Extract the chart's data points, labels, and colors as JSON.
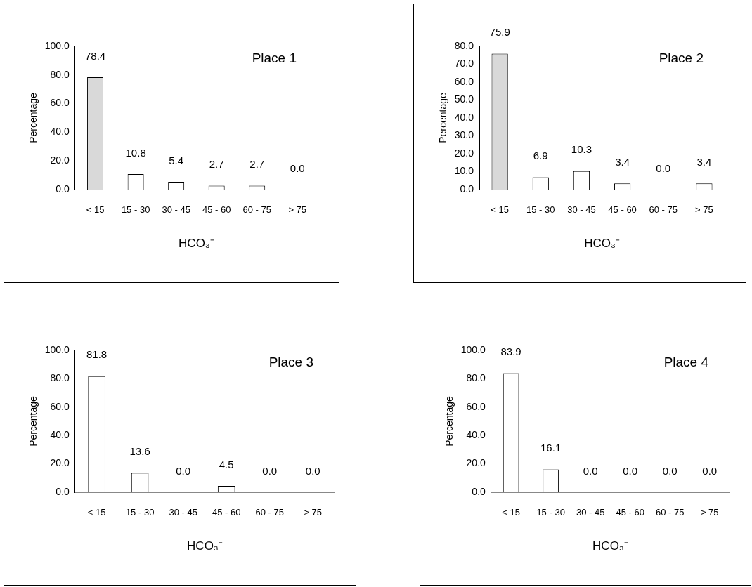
{
  "chart_data": [
    {
      "type": "bar",
      "title": "Place 1",
      "xlabel": "HCO₃⁻",
      "ylabel": "Percentage",
      "categories": [
        "< 15",
        "15 - 30",
        "30 - 45",
        "45 - 60",
        "60 - 75",
        "> 75"
      ],
      "values": [
        78.4,
        10.8,
        5.4,
        2.7,
        2.7,
        0
      ],
      "value_labels": [
        "78.4",
        "10.8",
        "5.4",
        "2.7",
        "2.7",
        "0.0"
      ],
      "colors": [
        "#d9d9d9",
        "#ffffff",
        "#ffffff",
        "#ffffff",
        "#ffffff",
        "#ffffff"
      ],
      "ylim": [
        0,
        100
      ],
      "yticks": [
        {
          "value": 0,
          "label": "0.0"
        },
        {
          "value": 20,
          "label": "20.0"
        },
        {
          "value": 40,
          "label": "40.0"
        },
        {
          "value": 60,
          "label": "60.0"
        },
        {
          "value": 80,
          "label": "80.0"
        },
        {
          "value": 100,
          "label": "100.0"
        }
      ],
      "grid": false,
      "legend": false
    },
    {
      "type": "bar",
      "title": "Place 2",
      "xlabel": "HCO₃⁻",
      "ylabel": "Percentage",
      "categories": [
        "< 15",
        "15 - 30",
        "30 - 45",
        "45 - 60",
        "60 - 75",
        "> 75"
      ],
      "values": [
        75.9,
        6.9,
        10.3,
        3.4,
        0,
        3.4
      ],
      "value_labels": [
        "75.9",
        "6.9",
        "10.3",
        "3.4",
        "0.0",
        "3.4"
      ],
      "colors": [
        "#d9d9d9",
        "#ffffff",
        "#ffffff",
        "#ffffff",
        "#ffffff",
        "#ffffff"
      ],
      "ylim": [
        0,
        80
      ],
      "yticks": [
        {
          "value": 0,
          "label": "0.0"
        },
        {
          "value": 10,
          "label": "10.0"
        },
        {
          "value": 20,
          "label": "20.0"
        },
        {
          "value": 30,
          "label": "30.0"
        },
        {
          "value": 40,
          "label": "40.0"
        },
        {
          "value": 50,
          "label": "50.0"
        },
        {
          "value": 60,
          "label": "60.0"
        },
        {
          "value": 70,
          "label": "70.0"
        },
        {
          "value": 80,
          "label": "80.0"
        }
      ],
      "grid": false,
      "legend": false
    },
    {
      "type": "bar",
      "title": "Place 3",
      "xlabel": "HCO₃⁻",
      "ylabel": "Percentage",
      "categories": [
        "< 15",
        "15 - 30",
        "30 - 45",
        "45 - 60",
        "60 - 75",
        "> 75"
      ],
      "values": [
        81.8,
        13.6,
        0,
        4.5,
        0,
        0
      ],
      "value_labels": [
        "81.8",
        "13.6",
        "0.0",
        "4.5",
        "0.0",
        "0.0"
      ],
      "colors": [
        "#ffffff",
        "#ffffff",
        "#ffffff",
        "#ffffff",
        "#ffffff",
        "#ffffff"
      ],
      "ylim": [
        0,
        100
      ],
      "yticks": [
        {
          "value": 0,
          "label": "0.0"
        },
        {
          "value": 20,
          "label": "20.0"
        },
        {
          "value": 40,
          "label": "40.0"
        },
        {
          "value": 60,
          "label": "60.0"
        },
        {
          "value": 80,
          "label": "80.0"
        },
        {
          "value": 100,
          "label": "100.0"
        }
      ],
      "grid": false,
      "legend": false
    },
    {
      "type": "bar",
      "title": "Place 4",
      "xlabel": "HCO₃⁻",
      "ylabel": "Percentage",
      "categories": [
        "< 15",
        "15 - 30",
        "30 - 45",
        "45 - 60",
        "60 - 75",
        "> 75"
      ],
      "values": [
        83.9,
        16.1,
        0,
        0,
        0,
        0
      ],
      "value_labels": [
        "83.9",
        "16.1",
        "0.0",
        "0.0",
        "0.0",
        "0.0"
      ],
      "colors": [
        "#ffffff",
        "#ffffff",
        "#ffffff",
        "#ffffff",
        "#ffffff",
        "#ffffff"
      ],
      "ylim": [
        0,
        100
      ],
      "yticks": [
        {
          "value": 0,
          "label": "0.0"
        },
        {
          "value": 20,
          "label": "20.0"
        },
        {
          "value": 40,
          "label": "40.0"
        },
        {
          "value": 60,
          "label": "60.0"
        },
        {
          "value": 80,
          "label": "80.0"
        },
        {
          "value": 100,
          "label": "100.0"
        }
      ],
      "grid": false,
      "legend": false
    }
  ]
}
